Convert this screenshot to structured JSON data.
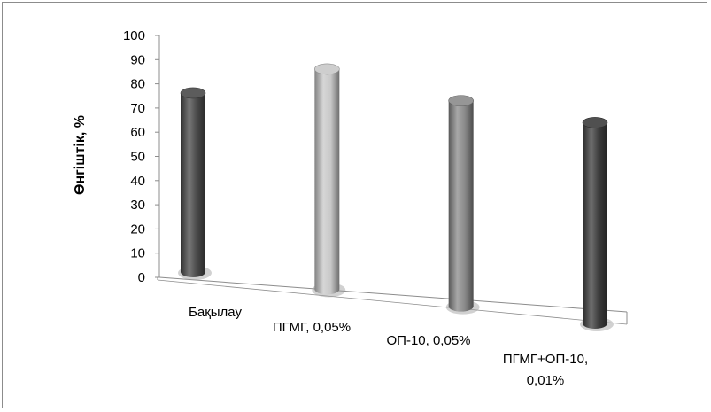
{
  "chart_data": {
    "type": "bar",
    "style": "3d-cylinder",
    "title": "",
    "xlabel": "",
    "ylabel": "Өнгіштік, %",
    "ylim": [
      0,
      100
    ],
    "yticks": [
      0,
      10,
      20,
      30,
      40,
      50,
      60,
      70,
      80,
      90,
      100
    ],
    "categories": [
      [
        "Бақылау"
      ],
      [
        "ПГМГ, 0,05%"
      ],
      [
        "ОП-10, 0,05%"
      ],
      [
        "ПГМГ+ОП-10,",
        "0,01%"
      ]
    ],
    "values": [
      74,
      91,
      85,
      83
    ],
    "colors": [
      "#4a4a4a",
      "#c8c8c8",
      "#8a8a8a",
      "#3d3d3d"
    ],
    "grid": false,
    "legend": "none"
  }
}
